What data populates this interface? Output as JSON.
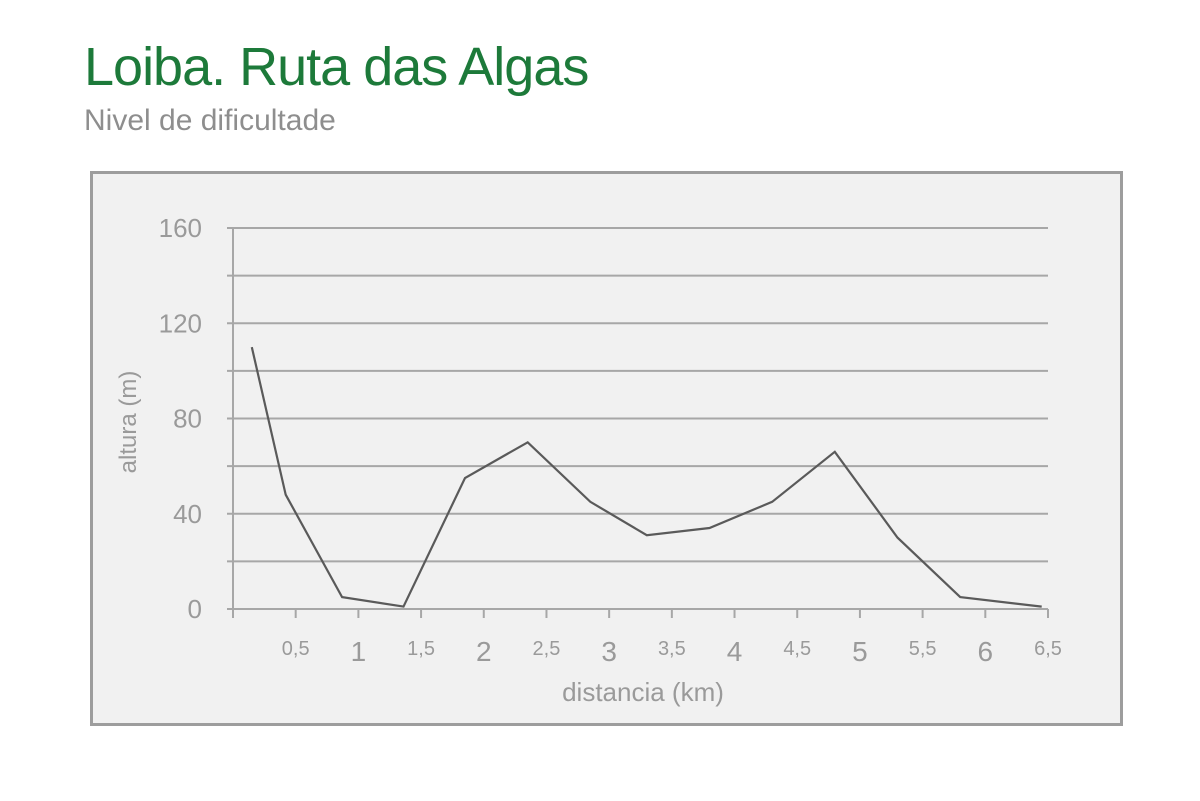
{
  "page": {
    "title": "Loiba. Ruta das Algas",
    "subtitle": "Nivel de dificultade"
  },
  "chart_data": {
    "type": "line",
    "title": "",
    "xlabel": "distancia (km)",
    "ylabel": "altura (m)",
    "xlim": [
      0,
      6.5
    ],
    "ylim": [
      0,
      160
    ],
    "grid": true,
    "y_ticks": [
      {
        "value": 0,
        "label": "0"
      },
      {
        "value": 40,
        "label": "40"
      },
      {
        "value": 80,
        "label": "80"
      },
      {
        "value": 120,
        "label": "120"
      },
      {
        "value": 160,
        "label": "160"
      }
    ],
    "y_gridlines": [
      0,
      20,
      40,
      60,
      80,
      100,
      120,
      140,
      160
    ],
    "x_ticks": [
      {
        "value": 0.5,
        "label": "0,5",
        "major": false
      },
      {
        "value": 1,
        "label": "1",
        "major": true
      },
      {
        "value": 1.5,
        "label": "1,5",
        "major": false
      },
      {
        "value": 2,
        "label": "2",
        "major": true
      },
      {
        "value": 2.5,
        "label": "2,5",
        "major": false
      },
      {
        "value": 3,
        "label": "3",
        "major": true
      },
      {
        "value": 3.5,
        "label": "3,5",
        "major": false
      },
      {
        "value": 4,
        "label": "4",
        "major": true
      },
      {
        "value": 4.5,
        "label": "4,5",
        "major": false
      },
      {
        "value": 5,
        "label": "5",
        "major": true
      },
      {
        "value": 5.5,
        "label": "5,5",
        "major": false
      },
      {
        "value": 6,
        "label": "6",
        "major": true
      },
      {
        "value": 6.5,
        "label": "6,5",
        "major": false
      }
    ],
    "series": [
      {
        "x": [
          0.15,
          0.42,
          0.87,
          1.36,
          1.85,
          2.35,
          2.85,
          3.3,
          3.8,
          4.3,
          4.8,
          5.3,
          5.8,
          6.45
        ],
        "y": [
          110,
          48,
          5,
          1,
          55,
          70,
          45,
          31,
          34,
          45,
          66,
          30,
          5,
          1
        ]
      }
    ],
    "colors": {
      "line": "#5a5a5a",
      "grid": "#a7a7a7",
      "tick_label": "#9a9a9a",
      "axis_label": "#9a9a9a"
    }
  }
}
